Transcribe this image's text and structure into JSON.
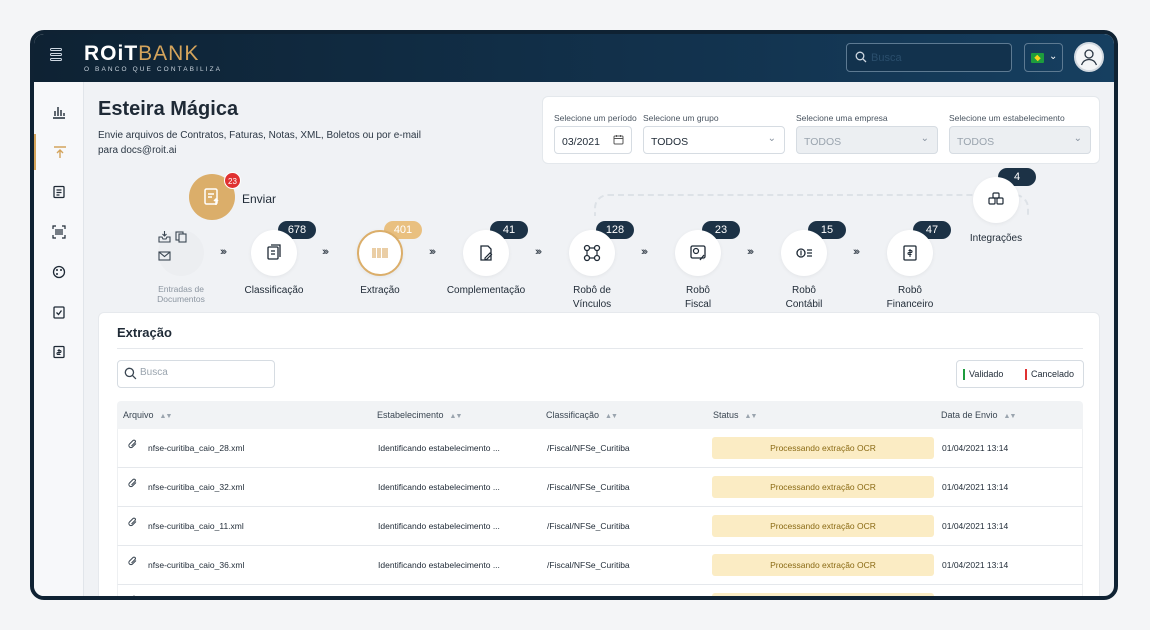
{
  "app": {
    "logo_primary": "ROiT",
    "logo_secondary": "BANK",
    "logo_tagline": "O BANCO QUE CONTABILIZA",
    "search_placeholder": "Busca",
    "colors": {
      "brand_gold": "#dbae6a",
      "topbar": "#0e2233",
      "badge_dark": "#1c3246",
      "status_bg": "#fbecc4",
      "validado": "#1d9c3d",
      "cancelado": "#e03131"
    }
  },
  "sidebar": {
    "items": [
      {
        "icon": "bar-chart-icon"
      },
      {
        "icon": "upload-icon",
        "active": true
      },
      {
        "icon": "document-icon"
      },
      {
        "icon": "barcode-icon"
      },
      {
        "icon": "palette-icon"
      },
      {
        "icon": "clipboard-check-icon"
      },
      {
        "icon": "invoice-icon"
      }
    ]
  },
  "header": {
    "title": "Esteira Mágica",
    "subtitle": "Envie arquivos de Contratos, Faturas, Notas, XML, Boletos ou por e-mail para docs@roit.ai"
  },
  "filters": {
    "periodo": {
      "label": "Selecione um período",
      "value": "03/2021"
    },
    "grupo": {
      "label": "Selecione um grupo",
      "value": "TODOS"
    },
    "empresa": {
      "label": "Selecione uma empresa",
      "value": "TODOS"
    },
    "estabelecimento": {
      "label": "Selecione um estabelecimento",
      "value": "TODOS"
    }
  },
  "pipeline": {
    "enviar": {
      "label": "Enviar",
      "badge": "23"
    },
    "entradas": {
      "label1": "Entradas de",
      "label2": "Documentos"
    },
    "steps": [
      {
        "count": "678",
        "label1": "Classificação",
        "label2": ""
      },
      {
        "count": "401",
        "label1": "Extração",
        "label2": "",
        "active": true
      },
      {
        "count": "41",
        "label1": "Complementação",
        "label2": ""
      },
      {
        "count": "128",
        "label1": "Robô de",
        "label2": "Vínculos"
      },
      {
        "count": "23",
        "label1": "Robô",
        "label2": "Fiscal"
      },
      {
        "count": "15",
        "label1": "Robô",
        "label2": "Contábil"
      },
      {
        "count": "47",
        "label1": "Robô",
        "label2": "Financeiro"
      }
    ],
    "integracoes": {
      "count": "4",
      "label": "Integrações"
    }
  },
  "panel": {
    "title": "Extração",
    "search_placeholder": "Busca",
    "legend": {
      "validado": "Validado",
      "cancelado": "Cancelado"
    },
    "columns": [
      "Arquivo",
      "Estabelecimento",
      "Classificação",
      "Status",
      "Data de Envio"
    ],
    "rows": [
      {
        "arquivo": "nfse-curitiba_caio_28.xml",
        "estabelecimento": "Identificando estabelecimento ...",
        "classificacao": "/Fiscal/NFSe_Curitiba",
        "status": "Processando extração OCR",
        "data": "01/04/2021 13:14"
      },
      {
        "arquivo": "nfse-curitiba_caio_32.xml",
        "estabelecimento": "Identificando estabelecimento ...",
        "classificacao": "/Fiscal/NFSe_Curitiba",
        "status": "Processando extração OCR",
        "data": "01/04/2021 13:14"
      },
      {
        "arquivo": "nfse-curitiba_caio_11.xml",
        "estabelecimento": "Identificando estabelecimento ...",
        "classificacao": "/Fiscal/NFSe_Curitiba",
        "status": "Processando extração OCR",
        "data": "01/04/2021 13:14"
      },
      {
        "arquivo": "nfse-curitiba_caio_36.xml",
        "estabelecimento": "Identificando estabelecimento ...",
        "classificacao": "/Fiscal/NFSe_Curitiba",
        "status": "Processando extração OCR",
        "data": "01/04/2021 13:14"
      },
      {
        "arquivo": "",
        "estabelecimento": "",
        "classificacao": "",
        "status": "",
        "data": ""
      }
    ]
  }
}
